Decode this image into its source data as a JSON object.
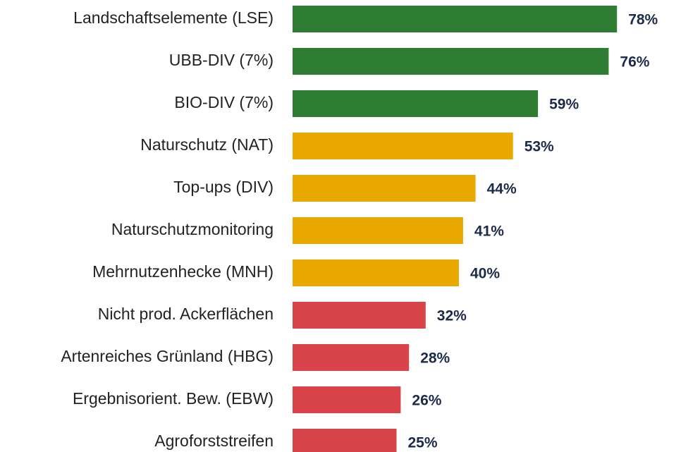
{
  "chart_data": {
    "type": "barh",
    "categories": [
      "Landschaftselemente (LSE)",
      "UBB-DIV (7%)",
      "BIO-DIV (7%)",
      "Naturschutz (NAT)",
      "Top-ups (DIV)",
      "Naturschutzmonitoring",
      "Mehrnutzenhecke (MNH)",
      "Nicht prod. Ackerflächen",
      "Artenreiches Grünland (HBG)",
      "Ergebnisorient. Bew. (EBW)",
      "Agroforststreifen"
    ],
    "values": [
      78,
      76,
      59,
      53,
      44,
      41,
      40,
      32,
      28,
      26,
      25
    ],
    "value_labels": [
      "78%",
      "76%",
      "59%",
      "53%",
      "44%",
      "41%",
      "40%",
      "32%",
      "28%",
      "26%",
      "25%"
    ],
    "colors": [
      "#2e7d32",
      "#2e7d32",
      "#2e7d32",
      "#e8a800",
      "#e8a800",
      "#e8a800",
      "#e8a800",
      "#d9444a",
      "#d9444a",
      "#d9444a",
      "#d9444a"
    ]
  }
}
